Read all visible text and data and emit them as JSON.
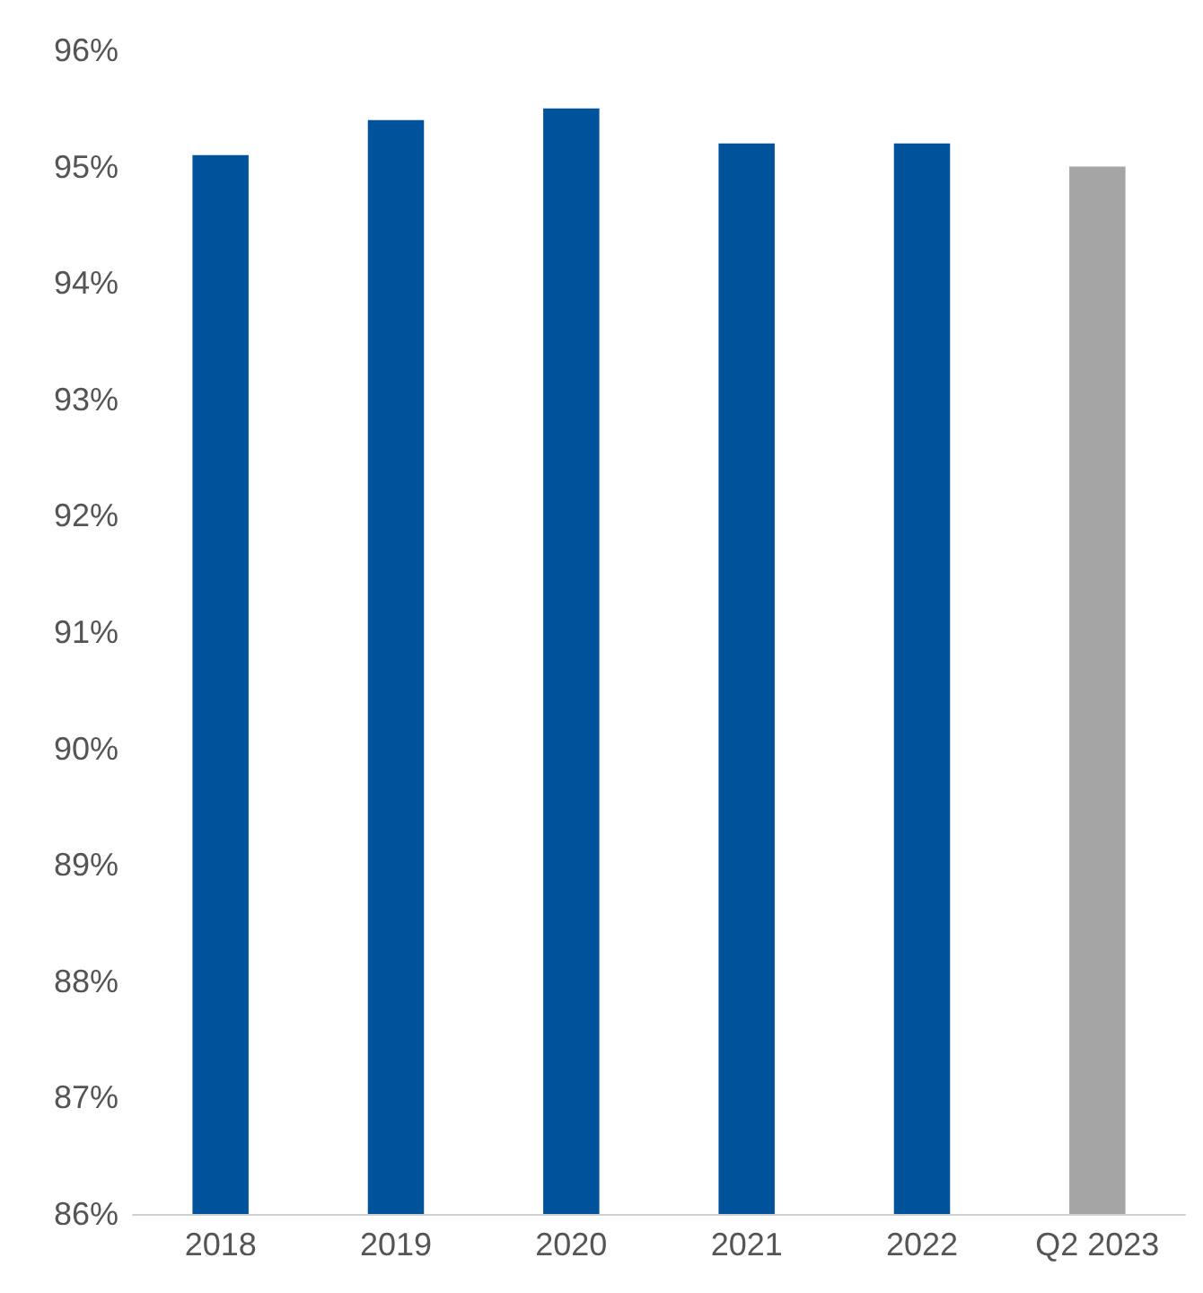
{
  "chart_data": {
    "type": "bar",
    "categories": [
      "2018",
      "2019",
      "2020",
      "2021",
      "2022",
      "Q2 2023"
    ],
    "values": [
      95.1,
      95.4,
      95.5,
      95.2,
      95.2,
      95.0
    ],
    "colors": [
      "#00529b",
      "#00529b",
      "#00529b",
      "#00529b",
      "#00529b",
      "#a5a5a5"
    ],
    "ylim": [
      86,
      96
    ],
    "yticks": [
      {
        "value": 86,
        "label": "86%"
      },
      {
        "value": 87,
        "label": "87%"
      },
      {
        "value": 88,
        "label": "88%"
      },
      {
        "value": 89,
        "label": "89%"
      },
      {
        "value": 90,
        "label": "90%"
      },
      {
        "value": 91,
        "label": "91%"
      },
      {
        "value": 92,
        "label": "92%"
      },
      {
        "value": 93,
        "label": "93%"
      },
      {
        "value": 94,
        "label": "94%"
      },
      {
        "value": 95,
        "label": "95%"
      },
      {
        "value": 96,
        "label": "96%"
      }
    ],
    "grid": false
  }
}
